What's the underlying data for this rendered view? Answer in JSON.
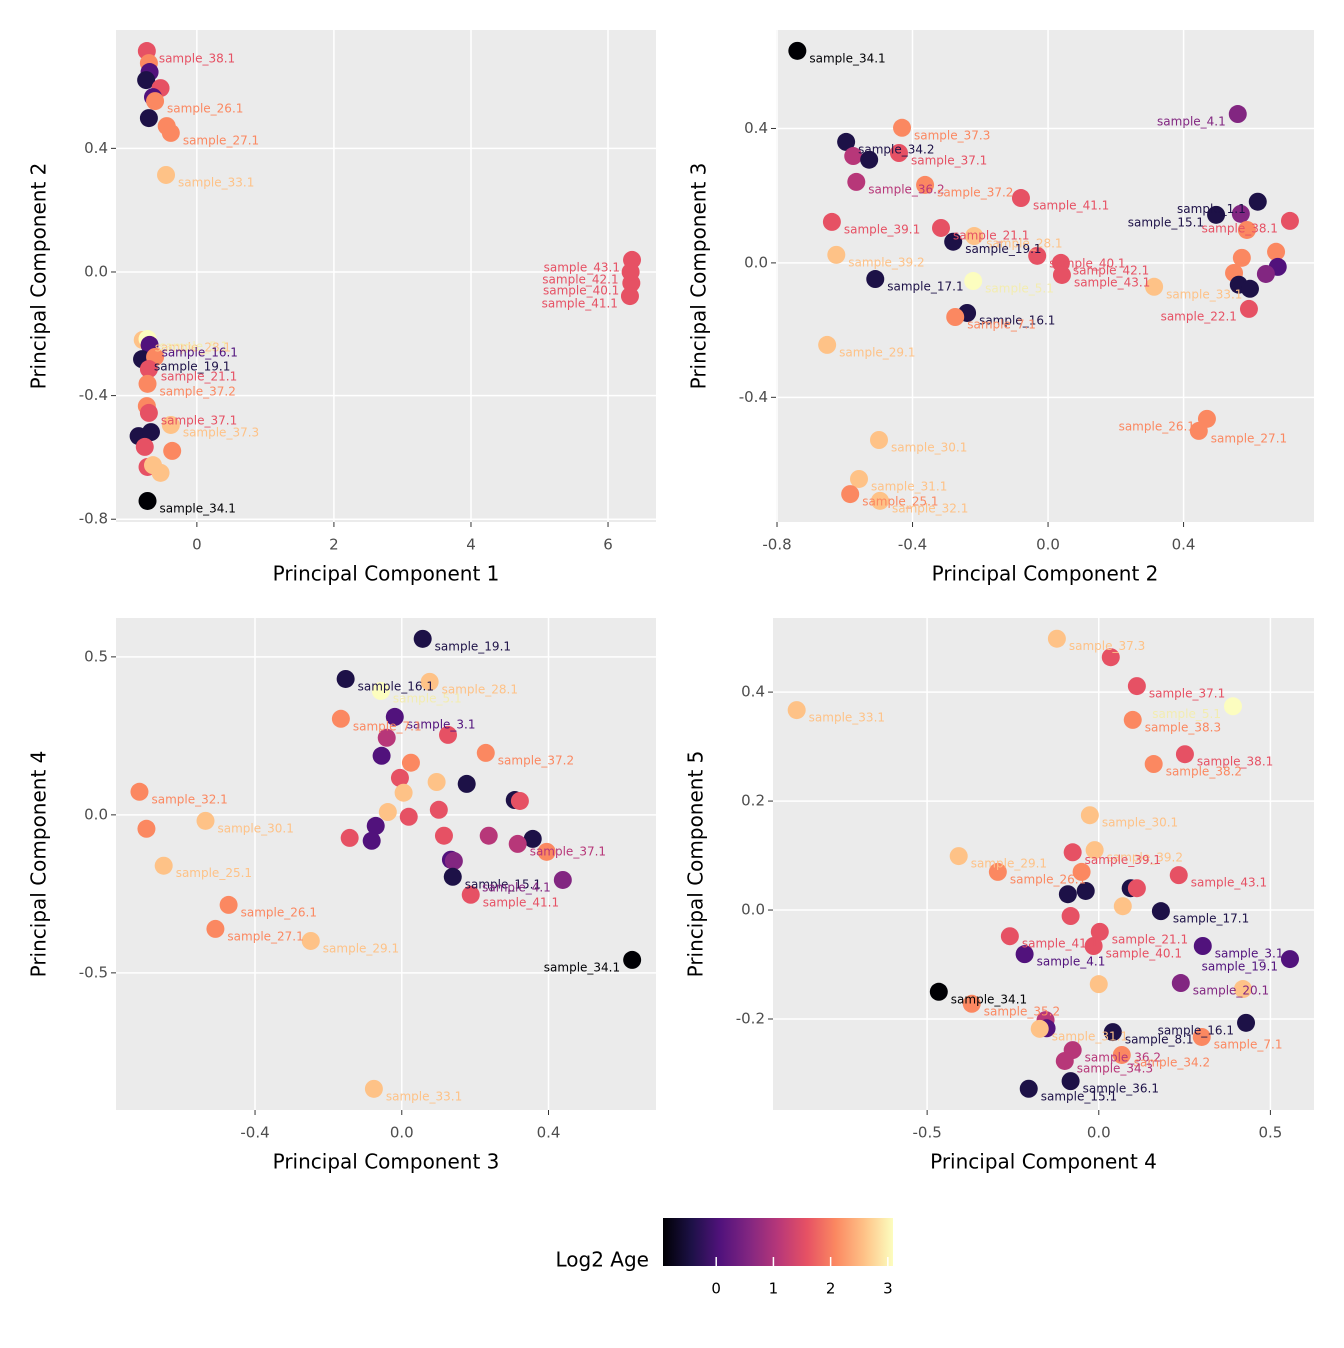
{
  "chart_data": [
    {
      "type": "scatter",
      "xlabel": "Principal Component 1",
      "ylabel": "Principal Component 2",
      "xlim": [
        -1.18,
        6.7
      ],
      "ylim": [
        -0.809,
        0.783
      ],
      "xticks": [
        0,
        2,
        4,
        6
      ],
      "yticks": [
        0.4,
        {
          "value": 0,
          "label": "0.0"
        },
        -0.4,
        -0.8
      ],
      "grid": true,
      "x": [
        -0.73,
        -0.7,
        -0.69,
        -0.74,
        -0.53,
        -0.64,
        -0.61,
        -0.7,
        -0.44,
        -0.38,
        -0.45,
        6.35,
        6.34,
        6.32,
        -0.79,
        -0.72,
        -0.69,
        -0.8,
        -0.61,
        -0.7,
        -0.72,
        -0.73,
        -0.7,
        -0.38,
        -0.85,
        -0.67,
        -0.76,
        -0.36,
        -0.72,
        -0.53,
        -0.64,
        -0.72,
        6.33
      ],
      "y": [
        0.715,
        0.676,
        0.647,
        0.621,
        0.595,
        0.566,
        0.553,
        0.498,
        0.472,
        0.45,
        0.314,
        0.039,
        -0.036,
        -0.078,
        -0.22,
        -0.217,
        -0.236,
        -0.282,
        -0.275,
        -0.314,
        -0.362,
        -0.434,
        -0.456,
        -0.495,
        -0.531,
        -0.518,
        -0.566,
        -0.579,
        -0.631,
        -0.65,
        -0.625,
        -0.741,
        0.0
      ],
      "colors": [
        "#e65164",
        "#fb8861",
        "#51127c",
        "#1d1147",
        "#e65164",
        "#51127c",
        "#fb8861",
        "#1d1147",
        "#fb8861",
        "#fb8861",
        "#fec287",
        "#e65164",
        "#e65164",
        "#e65164",
        "#fec287",
        "#fcfdbf",
        "#51127c",
        "#1d1147",
        "#fb8861",
        "#e65164",
        "#fb8861",
        "#fb8861",
        "#e65164",
        "#fec287",
        "#1d1147",
        "#1d1147",
        "#e65164",
        "#fb8861",
        "#e65164",
        "#fec287",
        "#fec287",
        "#000004",
        "#e65164"
      ],
      "labels": [
        "sample_38.1",
        null,
        null,
        null,
        null,
        null,
        "sample_26.1",
        null,
        null,
        "sample_27.1",
        "sample_33.1",
        "sample_43.1",
        "sample_40.1",
        "sample_41.1",
        "sample_28.1",
        "sample_5.1",
        "sample_16.1",
        "sample_19.1",
        null,
        "sample_21.1",
        "sample_37.2",
        null,
        "sample_37.1",
        "sample_37.3",
        null,
        null,
        null,
        null,
        null,
        null,
        null,
        "sample_34.1",
        "sample_42.1"
      ]
    },
    {
      "type": "scatter",
      "xlabel": "Principal Component 2",
      "ylabel": "Principal Component 3",
      "xlim": [
        -0.803,
        0.785
      ],
      "ylim": [
        -0.771,
        0.693
      ],
      "xticks": [
        -0.8,
        -0.4,
        {
          "value": 0,
          "label": "0.0"
        },
        0.4
      ],
      "yticks": [
        0.4,
        {
          "value": 0,
          "label": "0.0"
        },
        -0.4
      ],
      "grid": true,
      "x": [
        -0.74,
        0.56,
        -0.431,
        -0.596,
        -0.575,
        -0.528,
        -0.44,
        -0.566,
        -0.363,
        -0.08,
        0.619,
        0.496,
        0.569,
        0.714,
        -0.638,
        -0.316,
        -0.218,
        -0.28,
        0.673,
        0.587,
        0.572,
        -0.625,
        -0.032,
        0.038,
        0.041,
        0.678,
        0.643,
        0.549,
        -0.221,
        -0.51,
        0.563,
        0.596,
        0.313,
        -0.239,
        -0.274,
        0.593,
        -0.652,
        0.469,
        0.445,
        -0.499,
        -0.558,
        -0.584,
        -0.496
      ],
      "y": [
        0.631,
        0.443,
        0.402,
        0.36,
        0.318,
        0.307,
        0.327,
        0.241,
        0.232,
        0.193,
        0.182,
        0.143,
        0.146,
        0.125,
        0.122,
        0.104,
        0.08,
        0.063,
        0.033,
        0.098,
        0.015,
        0.024,
        0.021,
        0.0,
        -0.036,
        -0.012,
        -0.033,
        -0.03,
        -0.054,
        -0.048,
        -0.065,
        -0.077,
        -0.071,
        -0.149,
        -0.161,
        -0.137,
        -0.244,
        -0.464,
        -0.5,
        -0.527,
        -0.643,
        -0.688,
        -0.708
      ],
      "colors": [
        "#000004",
        "#822681",
        "#fb8861",
        "#1d1147",
        "#b73779",
        "#1d1147",
        "#e65164",
        "#b73779",
        "#fb8861",
        "#e65164",
        "#1d1147",
        "#1d1147",
        "#822681",
        "#e65164",
        "#e65164",
        "#e65164",
        "#fec287",
        "#1d1147",
        "#fb8861",
        "#fb8861",
        "#fb8861",
        "#fec287",
        "#e65164",
        "#e65164",
        "#e65164",
        "#51127c",
        "#822681",
        "#fb8861",
        "#fcfdbf",
        "#1d1147",
        "#1d1147",
        "#1d1147",
        "#fec287",
        "#1d1147",
        "#fb8861",
        "#e65164",
        "#fec287",
        "#fb8861",
        "#fb8861",
        "#fec287",
        "#fec287",
        "#fb8861",
        "#fec287"
      ],
      "labels": [
        "sample_34.1",
        "sample_4.1",
        "sample_37.3",
        "sample_34.2",
        null,
        null,
        "sample_37.1",
        "sample_36.2",
        "sample_37.2",
        "sample_41.1",
        "sample_1.1",
        "sample_15.1",
        null,
        "sample_38.1",
        "sample_39.1",
        "sample_21.1",
        "sample_28.1",
        "sample_19.1",
        null,
        null,
        null,
        "sample_39.2",
        "sample_40.1",
        "sample_42.1",
        "sample_43.1",
        null,
        null,
        null,
        "sample_5.1",
        "sample_17.1",
        null,
        null,
        "sample_33.1",
        "sample_16.1",
        "sample_7.1",
        "sample_22.1",
        "sample_29.1",
        "sample_26.1",
        "sample_27.1",
        "sample_30.1",
        "sample_31.1",
        "sample_25.1",
        "sample_32.1"
      ]
    },
    {
      "type": "scatter",
      "xlabel": "Principal Component 3",
      "ylabel": "Principal Component 4",
      "xlim": [
        -0.779,
        0.693
      ],
      "ylim": [
        -0.934,
        0.623
      ],
      "xticks": [
        -0.4,
        {
          "value": 0,
          "label": "0.0"
        },
        0.4
      ],
      "yticks": [
        0.5,
        {
          "value": 0,
          "label": "0.0"
        },
        -0.5
      ],
      "grid": true,
      "x": [
        0.057,
        -0.153,
        -0.057,
        0.076,
        -0.019,
        -0.166,
        -0.041,
        0.126,
        0.229,
        -0.055,
        0.025,
        -0.005,
        0.177,
        0.095,
        0.005,
        -0.715,
        0.308,
        0.322,
        -0.038,
        0.019,
        0.101,
        -0.535,
        -0.696,
        -0.071,
        -0.142,
        -0.082,
        0.115,
        0.237,
        0.357,
        0.316,
        0.395,
        -0.649,
        0.134,
        0.142,
        0.139,
        0.439,
        0.188,
        -0.472,
        -0.508,
        -0.248,
        0.628,
        -0.076
      ],
      "y": [
        0.557,
        0.43,
        0.392,
        0.421,
        0.31,
        0.304,
        0.244,
        0.253,
        0.196,
        0.187,
        0.165,
        0.117,
        0.098,
        0.104,
        0.07,
        0.073,
        0.047,
        0.044,
        0.009,
        -0.006,
        0.016,
        -0.019,
        -0.044,
        -0.035,
        -0.073,
        -0.082,
        -0.066,
        -0.066,
        -0.076,
        -0.092,
        -0.117,
        -0.161,
        -0.142,
        -0.146,
        -0.196,
        -0.206,
        -0.253,
        -0.285,
        -0.361,
        -0.399,
        -0.459,
        -0.867
      ],
      "colors": [
        "#1d1147",
        "#1d1147",
        "#fcfdbf",
        "#fec287",
        "#51127c",
        "#fb8861",
        "#b73779",
        "#e65164",
        "#fb8861",
        "#51127c",
        "#fb8861",
        "#e65164",
        "#1d1147",
        "#fec287",
        "#fec287",
        "#fb8861",
        "#1d1147",
        "#e65164",
        "#fec287",
        "#e65164",
        "#e65164",
        "#fec287",
        "#fb8861",
        "#51127c",
        "#e65164",
        "#51127c",
        "#e65164",
        "#b73779",
        "#1d1147",
        "#b73779",
        "#fb8861",
        "#fec287",
        "#51127c",
        "#822681",
        "#1d1147",
        "#822681",
        "#e65164",
        "#fb8861",
        "#fb8861",
        "#fec287",
        "#000004",
        "#fec287"
      ],
      "labels": [
        "sample_19.1",
        "sample_16.1",
        "sample_5.1",
        "sample_28.1",
        "sample_3.1",
        "sample_7.1",
        null,
        null,
        "sample_37.2",
        null,
        null,
        null,
        null,
        null,
        null,
        "sample_32.1",
        null,
        null,
        null,
        null,
        null,
        "sample_30.1",
        null,
        null,
        null,
        null,
        null,
        null,
        null,
        "sample_37.1",
        null,
        "sample_25.1",
        null,
        null,
        "sample_15.1",
        "sample_4.1",
        "sample_41.1",
        "sample_26.1",
        "sample_27.1",
        "sample_29.1",
        "sample_34.1",
        "sample_33.1"
      ]
    },
    {
      "type": "scatter",
      "xlabel": "Principal Component 4",
      "ylabel": "Principal Component 5",
      "xlim": [
        -0.949,
        0.627
      ],
      "ylim": [
        -0.367,
        0.536
      ],
      "xticks": [
        -0.5,
        {
          "value": 0,
          "label": "0.0"
        },
        0.5
      ],
      "yticks": [
        0.4,
        0.2,
        {
          "value": 0,
          "label": "0.0"
        },
        -0.2
      ],
      "grid": true,
      "x": [
        -0.122,
        0.035,
        0.111,
        -0.88,
        0.391,
        0.099,
        0.251,
        0.16,
        -0.026,
        -0.012,
        -0.408,
        -0.076,
        -0.294,
        -0.05,
        0.233,
        -0.09,
        -0.038,
        0.093,
        0.111,
        0.07,
        0.181,
        -0.082,
        0.003,
        -0.259,
        -0.015,
        0.303,
        -0.216,
        0.557,
        0.0,
        0.239,
        -0.466,
        0.42,
        -0.37,
        -0.155,
        -0.152,
        -0.172,
        0.429,
        0.041,
        0.3,
        -0.076,
        0.067,
        -0.099,
        -0.082,
        -0.204
      ],
      "y": [
        0.498,
        0.464,
        0.411,
        0.367,
        0.374,
        0.349,
        0.286,
        0.268,
        0.174,
        0.11,
        0.099,
        0.106,
        0.07,
        0.07,
        0.064,
        0.029,
        0.035,
        0.04,
        0.04,
        0.007,
        -0.002,
        -0.011,
        -0.04,
        -0.048,
        -0.066,
        -0.066,
        -0.081,
        -0.09,
        -0.136,
        -0.134,
        -0.15,
        -0.145,
        -0.172,
        -0.202,
        -0.217,
        -0.218,
        -0.207,
        -0.224,
        -0.233,
        -0.257,
        -0.266,
        -0.277,
        -0.314,
        -0.328
      ],
      "colors": [
        "#fec287",
        "#e65164",
        "#e65164",
        "#fec287",
        "#fcfdbf",
        "#fb8861",
        "#e65164",
        "#fb8861",
        "#fec287",
        "#fec287",
        "#fec287",
        "#e65164",
        "#fb8861",
        "#fb8861",
        "#e65164",
        "#1d1147",
        "#1d1147",
        "#1d1147",
        "#e65164",
        "#fec287",
        "#1d1147",
        "#e65164",
        "#e65164",
        "#e65164",
        "#e65164",
        "#51127c",
        "#51127c",
        "#51127c",
        "#fec287",
        "#822681",
        "#000004",
        "#fec287",
        "#fb8861",
        "#b73779",
        "#51127c",
        "#fec287",
        "#1d1147",
        "#1d1147",
        "#fb8861",
        "#b73779",
        "#fb8861",
        "#b73779",
        "#1d1147",
        "#1d1147"
      ],
      "labels": [
        "sample_37.3",
        null,
        "sample_37.1",
        "sample_33.1",
        "sample_5.1",
        "sample_38.3",
        "sample_38.1",
        "sample_38.2",
        "sample_30.1",
        "sample_39.2",
        "sample_29.1",
        "sample_39.1",
        "sample_26.1",
        null,
        "sample_43.1",
        null,
        null,
        null,
        null,
        null,
        "sample_17.1",
        null,
        "sample_21.1",
        "sample_41.1",
        "sample_40.1",
        "sample_3.1",
        "sample_4.1",
        "sample_19.1",
        null,
        "sample_20.1",
        "sample_34.1",
        null,
        "sample_35.2",
        null,
        null,
        "sample_31.1",
        "sample_16.1",
        "sample_8.1",
        "sample_7.1",
        "sample_36.2",
        "sample_34.2",
        "sample_34.3",
        "sample_36.1",
        "sample_15.1"
      ]
    }
  ],
  "legend": {
    "title": "Log2 Age",
    "lim": [
      -0.93,
      3.09
    ],
    "ticks": [
      0,
      1,
      2,
      3
    ],
    "colors": [
      "#000004",
      "#1d1147",
      "#51127c",
      "#822681",
      "#b73779",
      "#e65164",
      "#fb8861",
      "#fec287",
      "#fcfdbf"
    ]
  }
}
